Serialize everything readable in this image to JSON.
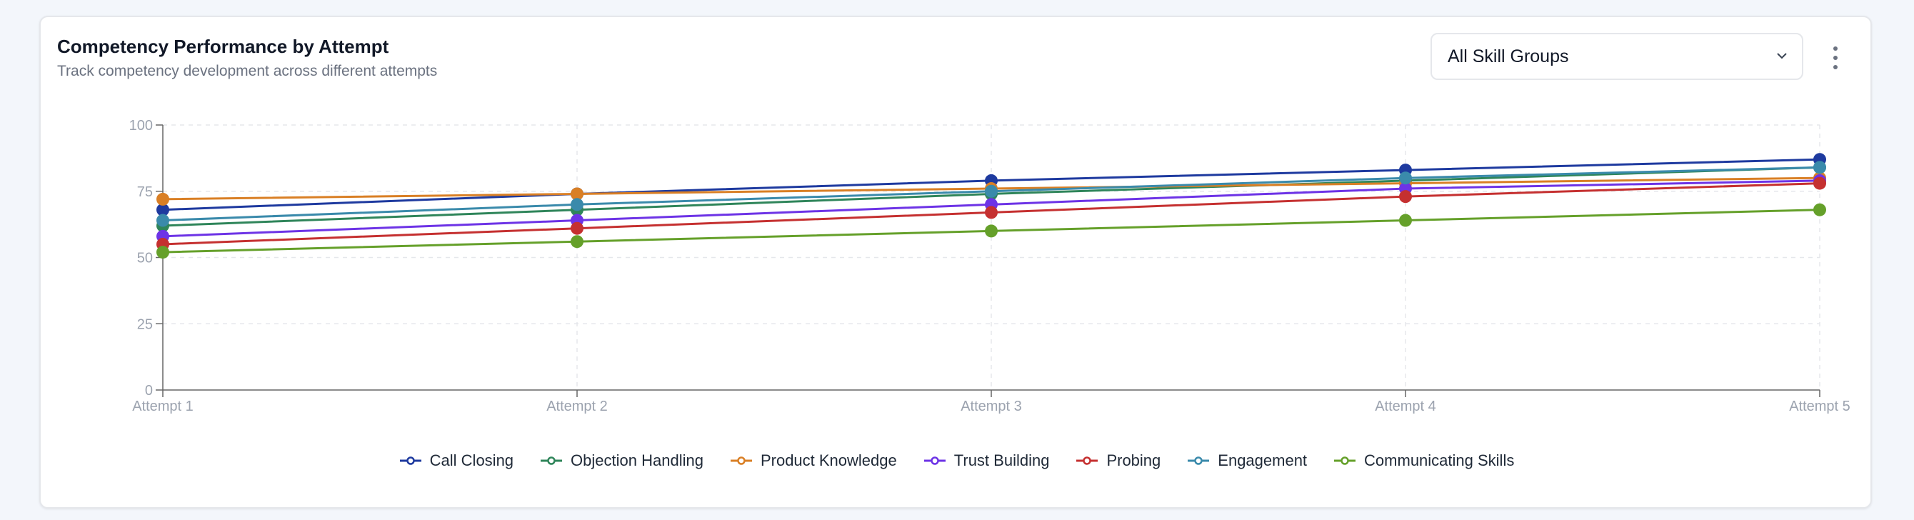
{
  "header": {
    "title": "Competency Performance by Attempt",
    "subtitle": "Track competency development across different attempts",
    "filter_selected": "All Skill Groups",
    "filter_icon": "chevron-down-icon",
    "menu_icon": "more-vertical-icon"
  },
  "chart_data": {
    "type": "line",
    "title": "",
    "xlabel": "",
    "ylabel": "",
    "x": [
      "Attempt 1",
      "Attempt 2",
      "Attempt 3",
      "Attempt 4",
      "Attempt 5"
    ],
    "ylim": [
      0,
      100
    ],
    "yticks": [
      "0",
      "25",
      "50",
      "75",
      "100"
    ],
    "grid": true,
    "legend_position": "bottom",
    "series": [
      {
        "name": "Call Closing",
        "color": "#1e3a9f",
        "values": [
          68,
          74,
          79,
          83,
          87
        ]
      },
      {
        "name": "Objection Handling",
        "color": "#2f855a",
        "values": [
          62,
          68,
          74,
          79,
          84
        ]
      },
      {
        "name": "Product Knowledge",
        "color": "#d97f25",
        "values": [
          72,
          74,
          76,
          78,
          80
        ]
      },
      {
        "name": "Trust Building",
        "color": "#6d33e6",
        "values": [
          58,
          64,
          70,
          76,
          79
        ]
      },
      {
        "name": "Probing",
        "color": "#c53030",
        "values": [
          55,
          61,
          67,
          73,
          78
        ]
      },
      {
        "name": "Engagement",
        "color": "#3a8aab",
        "values": [
          64,
          70,
          75,
          80,
          84
        ]
      },
      {
        "name": "Communicating Skills",
        "color": "#65a02a",
        "values": [
          52,
          56,
          60,
          64,
          68
        ]
      }
    ]
  }
}
